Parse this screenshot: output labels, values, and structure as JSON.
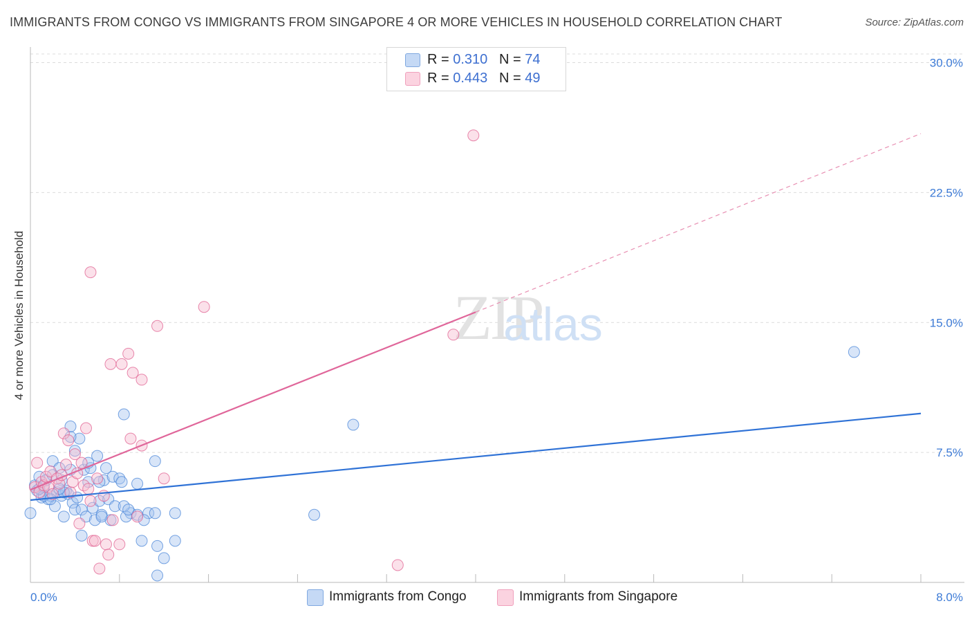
{
  "header": {
    "title": "IMMIGRANTS FROM CONGO VS IMMIGRANTS FROM SINGAPORE 4 OR MORE VEHICLES IN HOUSEHOLD CORRELATION CHART",
    "source": "Source: ZipAtlas.com"
  },
  "watermark": {
    "zip": "ZIP",
    "atlas": "atlas"
  },
  "legend_top": {
    "rows": [
      {
        "r_label": "R =",
        "r_value": "0.310",
        "n_label": "N =",
        "n_value": "74",
        "color": "#a9c6ef"
      },
      {
        "r_label": "R =",
        "r_value": "0.443",
        "n_label": "N =",
        "n_value": "49",
        "color": "#f7bcd0"
      }
    ]
  },
  "legend_bottom": {
    "items": [
      {
        "label": "Immigrants from Congo",
        "color": "#a9c6ef"
      },
      {
        "label": "Immigrants from Singapore",
        "color": "#f7bcd0"
      }
    ]
  },
  "chart_data": {
    "type": "scatter",
    "title": "IMMIGRANTS FROM CONGO VS IMMIGRANTS FROM SINGAPORE 4 OR MORE VEHICLES IN HOUSEHOLD CORRELATION CHART",
    "xlabel": "",
    "ylabel": "4 or more Vehicles in Household",
    "xlim": [
      0,
      8
    ],
    "ylim": [
      0,
      30.5
    ],
    "x_tick_labels": [
      "0.0%",
      "8.0%"
    ],
    "y_ticks": [
      7.5,
      15.0,
      22.5,
      30.0
    ],
    "y_tick_labels": [
      "7.5%",
      "15.0%",
      "22.5%",
      "30.0%"
    ],
    "grid": true,
    "legend_position": "top-center",
    "series": [
      {
        "name": "Immigrants from Congo",
        "color": "#4a86d8",
        "fill": "#a9c6ef",
        "r": 0.31,
        "n": 74,
        "trendline": {
          "x": [
            0.0,
            8.0
          ],
          "y": [
            4.75,
            9.75
          ],
          "style": "solid"
        },
        "points": [
          [
            0.04,
            5.6
          ],
          [
            0.06,
            5.3
          ],
          [
            0.08,
            6.1
          ],
          [
            0.1,
            4.9
          ],
          [
            0.12,
            5.5
          ],
          [
            0.14,
            5.9
          ],
          [
            0.16,
            4.8
          ],
          [
            0.18,
            5.0
          ],
          [
            0.2,
            7.0
          ],
          [
            0.22,
            4.4
          ],
          [
            0.24,
            5.2
          ],
          [
            0.26,
            6.6
          ],
          [
            0.28,
            5.0
          ],
          [
            0.3,
            3.8
          ],
          [
            0.32,
            5.3
          ],
          [
            0.34,
            5.1
          ],
          [
            0.36,
            6.5
          ],
          [
            0.38,
            4.6
          ],
          [
            0.4,
            4.2
          ],
          [
            0.42,
            4.9
          ],
          [
            0.44,
            8.3
          ],
          [
            0.46,
            4.2
          ],
          [
            0.48,
            6.5
          ],
          [
            0.5,
            3.8
          ],
          [
            0.52,
            5.8
          ],
          [
            0.54,
            6.6
          ],
          [
            0.56,
            4.3
          ],
          [
            0.58,
            3.6
          ],
          [
            0.6,
            7.3
          ],
          [
            0.62,
            4.7
          ],
          [
            0.64,
            3.9
          ],
          [
            0.66,
            5.9
          ],
          [
            0.68,
            6.6
          ],
          [
            0.7,
            4.8
          ],
          [
            0.72,
            3.6
          ],
          [
            0.74,
            6.1
          ],
          [
            0.76,
            4.4
          ],
          [
            0.46,
            2.7
          ],
          [
            0.12,
            5.0
          ],
          [
            0.9,
            4.0
          ],
          [
            0.96,
            3.9
          ],
          [
            1.0,
            2.4
          ],
          [
            1.06,
            4.0
          ],
          [
            1.12,
            7.0
          ],
          [
            1.14,
            2.1
          ],
          [
            1.2,
            1.4
          ],
          [
            1.3,
            2.4
          ],
          [
            1.14,
            0.4
          ],
          [
            0.18,
            4.8
          ],
          [
            0.28,
            5.9
          ],
          [
            0.3,
            5.2
          ],
          [
            0.36,
            8.4
          ],
          [
            0.4,
            7.6
          ],
          [
            0.52,
            6.9
          ],
          [
            0.62,
            5.8
          ],
          [
            0.64,
            3.8
          ],
          [
            0.8,
            6.0
          ],
          [
            0.82,
            5.8
          ],
          [
            0.84,
            4.4
          ],
          [
            0.86,
            3.8
          ],
          [
            0.88,
            4.2
          ],
          [
            1.02,
            3.6
          ],
          [
            0.36,
            9.0
          ],
          [
            0.84,
            9.7
          ],
          [
            0.96,
            5.7
          ],
          [
            1.12,
            4.0
          ],
          [
            1.3,
            4.0
          ],
          [
            2.55,
            3.9
          ],
          [
            2.9,
            9.1
          ],
          [
            7.4,
            13.3
          ],
          [
            0.0,
            4.0
          ],
          [
            0.08,
            5.4
          ],
          [
            0.2,
            6.2
          ],
          [
            0.26,
            5.4
          ]
        ]
      },
      {
        "name": "Immigrants from Singapore",
        "color": "#e06090",
        "fill": "#f7bcd0",
        "r": 0.443,
        "n": 49,
        "trendline": {
          "x": [
            0.0,
            4.0
          ],
          "y": [
            5.35,
            15.6
          ],
          "dashed_extension": {
            "x": [
              4.0,
              8.0
            ],
            "y": [
              15.6,
              25.9
            ]
          }
        },
        "points": [
          [
            0.04,
            5.5
          ],
          [
            0.06,
            6.9
          ],
          [
            0.08,
            5.2
          ],
          [
            0.1,
            5.8
          ],
          [
            0.12,
            5.6
          ],
          [
            0.14,
            6.1
          ],
          [
            0.16,
            5.5
          ],
          [
            0.18,
            6.4
          ],
          [
            0.2,
            5.1
          ],
          [
            0.24,
            6.0
          ],
          [
            0.26,
            5.7
          ],
          [
            0.28,
            6.2
          ],
          [
            0.3,
            8.6
          ],
          [
            0.32,
            6.8
          ],
          [
            0.34,
            8.2
          ],
          [
            0.36,
            5.2
          ],
          [
            0.38,
            5.8
          ],
          [
            0.4,
            7.4
          ],
          [
            0.42,
            6.3
          ],
          [
            0.44,
            3.4
          ],
          [
            0.46,
            6.9
          ],
          [
            0.48,
            5.6
          ],
          [
            0.5,
            8.9
          ],
          [
            0.52,
            5.4
          ],
          [
            0.54,
            4.7
          ],
          [
            0.56,
            2.4
          ],
          [
            0.58,
            2.4
          ],
          [
            0.6,
            6.0
          ],
          [
            0.62,
            0.8
          ],
          [
            0.66,
            5.0
          ],
          [
            0.68,
            2.2
          ],
          [
            0.7,
            1.6
          ],
          [
            0.72,
            12.6
          ],
          [
            0.74,
            3.6
          ],
          [
            0.8,
            2.2
          ],
          [
            0.82,
            12.6
          ],
          [
            0.88,
            13.2
          ],
          [
            0.9,
            8.3
          ],
          [
            0.92,
            12.1
          ],
          [
            0.96,
            3.8
          ],
          [
            1.0,
            7.9
          ],
          [
            1.0,
            11.7
          ],
          [
            1.14,
            14.8
          ],
          [
            1.2,
            6.0
          ],
          [
            1.56,
            15.9
          ],
          [
            0.54,
            17.9
          ],
          [
            3.3,
            1.0
          ],
          [
            3.8,
            14.3
          ],
          [
            3.98,
            25.8
          ]
        ]
      }
    ]
  }
}
